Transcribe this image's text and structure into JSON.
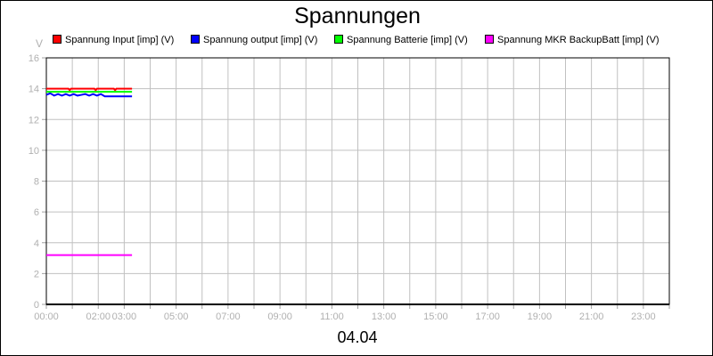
{
  "chart_data": {
    "type": "line",
    "title": "Spannungen",
    "xlabel": "04.04",
    "ylabel": "V",
    "xlim_hours": [
      0,
      24
    ],
    "ylim": [
      0,
      16
    ],
    "yticks": [
      0,
      2,
      4,
      6,
      8,
      10,
      12,
      14,
      16
    ],
    "xtick_labels": [
      {
        "h": 0,
        "label": "00:00"
      },
      {
        "h": 2,
        "label": "02:00"
      },
      {
        "h": 3,
        "label": "03:00"
      },
      {
        "h": 5,
        "label": "05:00"
      },
      {
        "h": 7,
        "label": "07:00"
      },
      {
        "h": 9,
        "label": "09:00"
      },
      {
        "h": 11,
        "label": "11:00"
      },
      {
        "h": 13,
        "label": "13:00"
      },
      {
        "h": 15,
        "label": "15:00"
      },
      {
        "h": 17,
        "label": "17:00"
      },
      {
        "h": 19,
        "label": "19:00"
      },
      {
        "h": 21,
        "label": "21:00"
      },
      {
        "h": 23,
        "label": "23:00"
      }
    ],
    "grid": true,
    "legend_placement": "top",
    "series": [
      {
        "name": "Spannung Input [imp] (V)",
        "color": "#ff0000",
        "points": [
          [
            0,
            14.0
          ],
          [
            0.85,
            14.0
          ],
          [
            0.9,
            13.9
          ],
          [
            0.95,
            14.0
          ],
          [
            1.85,
            14.0
          ],
          [
            1.9,
            13.9
          ],
          [
            1.95,
            14.0
          ],
          [
            2.6,
            14.0
          ],
          [
            2.65,
            13.9
          ],
          [
            2.7,
            14.0
          ],
          [
            3.3,
            14.0
          ]
        ]
      },
      {
        "name": "Spannung output [imp] (V)",
        "color": "#0000ff",
        "points": [
          [
            0,
            13.6
          ],
          [
            0.15,
            13.7
          ],
          [
            0.3,
            13.55
          ],
          [
            0.45,
            13.65
          ],
          [
            0.6,
            13.55
          ],
          [
            0.75,
            13.65
          ],
          [
            0.9,
            13.55
          ],
          [
            1.05,
            13.65
          ],
          [
            1.2,
            13.55
          ],
          [
            1.35,
            13.6
          ],
          [
            1.5,
            13.65
          ],
          [
            1.65,
            13.55
          ],
          [
            1.8,
            13.65
          ],
          [
            1.95,
            13.55
          ],
          [
            2.1,
            13.65
          ],
          [
            2.25,
            13.5
          ],
          [
            3.3,
            13.5
          ]
        ]
      },
      {
        "name": "Spannung Batterie [imp] (V)",
        "color": "#00ff00",
        "points": [
          [
            0,
            13.8
          ],
          [
            3.3,
            13.8
          ]
        ]
      },
      {
        "name": "Spannung MKR BackupBatt [imp] (V)",
        "color": "#ff00ff",
        "points": [
          [
            0,
            3.2
          ],
          [
            3.3,
            3.2
          ]
        ]
      }
    ]
  }
}
